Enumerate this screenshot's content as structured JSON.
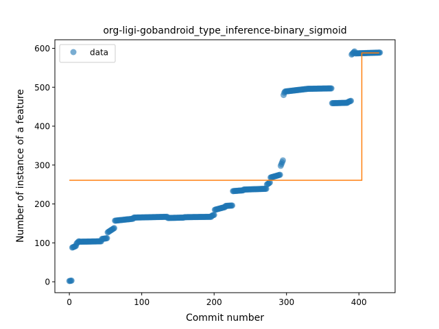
{
  "chart_data": {
    "type": "scatter",
    "title": "org-ligi-gobandroid_type_inference-binary_sigmoid",
    "xlabel": "Commit number",
    "ylabel": "Number of instance of a feature",
    "xlim": [
      -20,
      450
    ],
    "ylim": [
      -28,
      622
    ],
    "xticks": [
      0,
      100,
      200,
      300,
      400
    ],
    "yticks": [
      0,
      100,
      200,
      300,
      400,
      500,
      600
    ],
    "grid": false,
    "legend": {
      "placement": "top-left",
      "entries": [
        "data"
      ]
    },
    "colors": {
      "data": "#1f77b4",
      "fit": "#ff7f0e"
    },
    "series": [
      {
        "name": "data",
        "kind": "scatter",
        "points_segments": [
          {
            "x_start": 0,
            "x_end": 3,
            "y_start": 2,
            "y_end": 3
          },
          {
            "x_start": 4,
            "x_end": 9,
            "y_start": 88,
            "y_end": 92
          },
          {
            "x_start": 10,
            "x_end": 13,
            "y_start": 98,
            "y_end": 104
          },
          {
            "x_start": 14,
            "x_end": 44,
            "y_start": 103,
            "y_end": 104
          },
          {
            "x_start": 45,
            "x_end": 52,
            "y_start": 110,
            "y_end": 112
          },
          {
            "x_start": 53,
            "x_end": 62,
            "y_start": 127,
            "y_end": 138
          },
          {
            "x_start": 63,
            "x_end": 88,
            "y_start": 157,
            "y_end": 162
          },
          {
            "x_start": 89,
            "x_end": 135,
            "y_start": 165,
            "y_end": 167
          },
          {
            "x_start": 136,
            "x_end": 158,
            "y_start": 164,
            "y_end": 165
          },
          {
            "x_start": 159,
            "x_end": 196,
            "y_start": 166,
            "y_end": 167
          },
          {
            "x_start": 197,
            "x_end": 200,
            "y_start": 170,
            "y_end": 172
          },
          {
            "x_start": 201,
            "x_end": 215,
            "y_start": 185,
            "y_end": 192
          },
          {
            "x_start": 216,
            "x_end": 225,
            "y_start": 195,
            "y_end": 196
          },
          {
            "x_start": 226,
            "x_end": 240,
            "y_start": 233,
            "y_end": 235
          },
          {
            "x_start": 241,
            "x_end": 272,
            "y_start": 237,
            "y_end": 239
          },
          {
            "x_start": 273,
            "x_end": 277,
            "y_start": 250,
            "y_end": 255
          },
          {
            "x_start": 278,
            "x_end": 291,
            "y_start": 268,
            "y_end": 275
          },
          {
            "x_start": 292,
            "x_end": 295,
            "y_start": 298,
            "y_end": 312
          },
          {
            "x_start": 296,
            "x_end": 297,
            "y_start": 480,
            "y_end": 486
          },
          {
            "x_start": 298,
            "x_end": 330,
            "y_start": 489,
            "y_end": 496
          },
          {
            "x_start": 331,
            "x_end": 362,
            "y_start": 496,
            "y_end": 497
          },
          {
            "x_start": 363,
            "x_end": 384,
            "y_start": 459,
            "y_end": 460
          },
          {
            "x_start": 385,
            "x_end": 389,
            "y_start": 462,
            "y_end": 465
          },
          {
            "x_start": 390,
            "x_end": 394,
            "y_start": 584,
            "y_end": 592
          },
          {
            "x_start": 395,
            "x_end": 429,
            "y_start": 587,
            "y_end": 589
          }
        ]
      },
      {
        "name": "",
        "kind": "step-line",
        "x": [
          0,
          404,
          404,
          428
        ],
        "y": [
          261,
          261,
          588,
          588
        ]
      }
    ]
  }
}
